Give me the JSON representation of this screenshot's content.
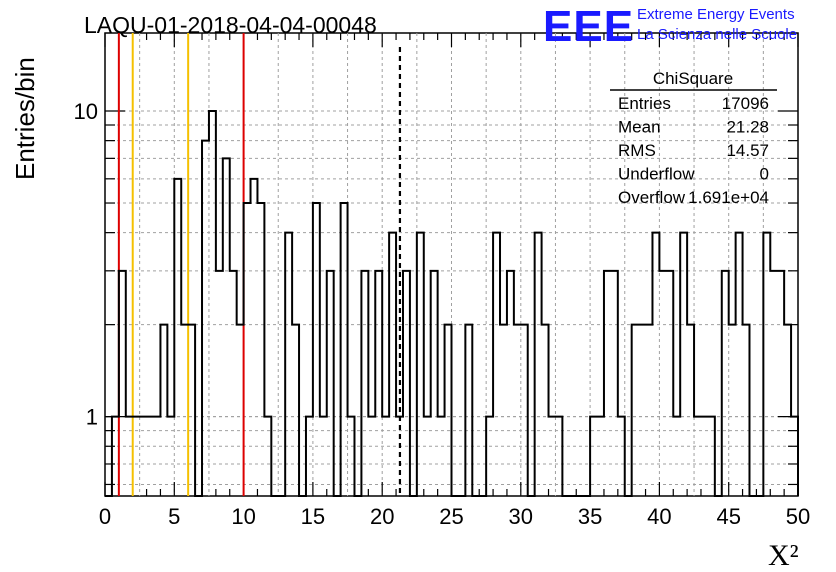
{
  "header": {
    "run_title": "LAQU-01-2018-04-04-00048",
    "logo_text": "EEE",
    "org_line1": "Extreme Energy Events",
    "org_line2": "La Scienza nelle Scuole"
  },
  "stats": {
    "name": "ChiSquare",
    "rows": [
      {
        "label": "Entries",
        "value": "17096"
      },
      {
        "label": "Mean",
        "value": "21.28"
      },
      {
        "label": "RMS",
        "value": "14.57"
      },
      {
        "label": "Underflow",
        "value": "0"
      },
      {
        "label": "Overflow",
        "value": "1.691e+04"
      }
    ]
  },
  "colors": {
    "histogram": "#000000",
    "red_line": "#dd0000",
    "yellow_line": "#f5c000",
    "logo": "#1a1aff",
    "grid": "#a0a0a0"
  },
  "chart_data": {
    "type": "histogram",
    "title": "LAQU-01-2018-04-04-00048",
    "xlabel": "X²",
    "ylabel": "Entries/bin",
    "xlim": [
      0,
      50
    ],
    "ylim": [
      0.55,
      18
    ],
    "yscale": "log",
    "bin_width": 0.5,
    "x_ticks": [
      0,
      5,
      10,
      15,
      20,
      25,
      30,
      35,
      40,
      45,
      50
    ],
    "y_tick_labels": [
      1,
      10
    ],
    "counts": [
      0,
      1,
      3,
      1,
      1,
      1,
      1,
      1,
      2,
      1,
      6,
      2,
      2,
      0,
      8,
      10,
      3,
      7,
      3,
      2,
      5,
      6,
      5,
      1,
      0,
      0,
      4,
      2,
      0,
      1,
      5,
      1,
      3,
      0,
      5,
      1,
      0,
      3,
      1,
      3,
      1,
      4,
      1,
      3,
      0,
      4,
      1,
      3,
      1,
      2,
      0,
      0,
      2,
      0,
      0,
      1,
      4,
      2,
      3,
      2,
      2,
      0,
      4,
      2,
      1,
      1,
      0,
      0,
      0,
      0,
      1,
      1,
      3,
      3,
      1,
      0,
      2,
      2,
      2,
      4,
      3,
      3,
      1,
      4,
      2,
      1,
      1,
      1,
      0,
      3,
      2,
      4,
      2,
      0,
      0,
      4,
      3,
      3,
      2,
      1
    ],
    "vertical_lines": [
      {
        "x": 1,
        "color": "red",
        "style": "solid"
      },
      {
        "x": 2,
        "color": "yellow",
        "style": "solid"
      },
      {
        "x": 6,
        "color": "yellow",
        "style": "solid"
      },
      {
        "x": 10,
        "color": "red",
        "style": "solid"
      },
      {
        "x": 21.28,
        "color": "black",
        "style": "dashed"
      }
    ]
  }
}
